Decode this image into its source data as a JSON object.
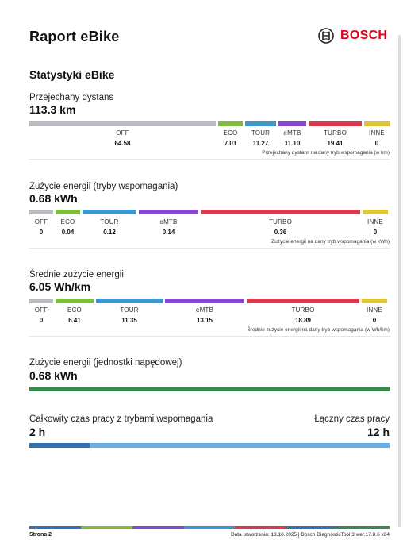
{
  "report": {
    "title": "Raport eBike",
    "brand": "BOSCH",
    "brand_color": "#e2001a"
  },
  "section_title": "Statystyki eBike",
  "distance": {
    "label": "Przejechany dystans",
    "value": "113.3 km",
    "modes": [
      {
        "name": "OFF",
        "value": "64.58",
        "color": "#b9bcc0"
      },
      {
        "name": "ECO",
        "value": "7.01",
        "color": "#7cbc3f"
      },
      {
        "name": "TOUR",
        "value": "11.27",
        "color": "#3e96cf"
      },
      {
        "name": "eMTB",
        "value": "11.10",
        "color": "#8a45d0"
      },
      {
        "name": "TURBO",
        "value": "19.41",
        "color": "#d9394a"
      },
      {
        "name": "INNE",
        "value": "0",
        "color": "#e0c637"
      }
    ],
    "note": "Przejechany dystans na dany tryb wspomagania (w km)"
  },
  "energy_modes": {
    "label": "Zużycie energii (tryby wspomagania)",
    "value": "0.68 kWh",
    "modes": [
      {
        "name": "OFF",
        "value": "0",
        "color": "#b9bcc0"
      },
      {
        "name": "ECO",
        "value": "0.04",
        "color": "#7cbc3f"
      },
      {
        "name": "TOUR",
        "value": "0.12",
        "color": "#3e96cf"
      },
      {
        "name": "eMTB",
        "value": "0.14",
        "color": "#8a45d0"
      },
      {
        "name": "TURBO",
        "value": "0.36",
        "color": "#d9394a"
      },
      {
        "name": "INNE",
        "value": "0",
        "color": "#e0c637"
      }
    ],
    "note": "Zużycie energii na dany tryb wspomagania (w kWh)"
  },
  "avg_energy": {
    "label": "Średnie zużycie energii",
    "value": "6.05 Wh/km",
    "modes": [
      {
        "name": "OFF",
        "value": "0",
        "color": "#b9bcc0"
      },
      {
        "name": "ECO",
        "value": "6.41",
        "color": "#7cbc3f"
      },
      {
        "name": "TOUR",
        "value": "11.35",
        "color": "#3e96cf"
      },
      {
        "name": "eMTB",
        "value": "13.15",
        "color": "#8a45d0"
      },
      {
        "name": "TURBO",
        "value": "18.89",
        "color": "#d9394a"
      },
      {
        "name": "INNE",
        "value": "0",
        "color": "#e0c637"
      }
    ],
    "note": "Średnie zużycie energii na dany tryb wspomagania (w Wh/km)"
  },
  "drive_energy": {
    "label": "Zużycie energii (jednostki napędowej)",
    "value": "0.68 kWh",
    "color": "#3a8a4f"
  },
  "operating_time": {
    "label": "Całkowity czas pracy z trybami wspomagania",
    "value": "2 h",
    "total_label": "Łączny czas pracy",
    "total_value": "12 h",
    "assist_fraction": 0.1667,
    "assist_color": "#2f73b5",
    "total_color": "#67aee9"
  },
  "footer": {
    "page": "Strona 2",
    "info": "Data utworzenia: 13.10.2025 | Bosch DiagnosticTool 3 wer.17.8.6 x64"
  }
}
